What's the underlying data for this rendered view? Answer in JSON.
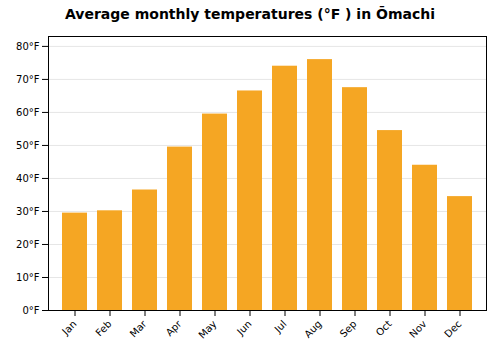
{
  "chart_data": {
    "type": "bar",
    "title": "Average monthly temperatures (°F ) in Ōmachi",
    "categories": [
      "Jan",
      "Feb",
      "Mar",
      "Apr",
      "May",
      "Jun",
      "Jul",
      "Aug",
      "Sep",
      "Oct",
      "Nov",
      "Dec"
    ],
    "values": [
      29.5,
      30.2,
      36.5,
      49.5,
      59.5,
      66.5,
      74.0,
      76.0,
      67.5,
      54.5,
      44.0,
      34.5
    ],
    "color": "#F5A623",
    "ylim": [
      0,
      83
    ],
    "yticks": [
      {
        "value": 0,
        "label": "0°F"
      },
      {
        "value": 10,
        "label": "10°F"
      },
      {
        "value": 20,
        "label": "20°F"
      },
      {
        "value": 30,
        "label": "30°F"
      },
      {
        "value": 40,
        "label": "40°F"
      },
      {
        "value": 50,
        "label": "50°F"
      },
      {
        "value": 60,
        "label": "60°F"
      },
      {
        "value": 70,
        "label": "70°F"
      },
      {
        "value": 80,
        "label": "80°F"
      }
    ],
    "grid": true
  }
}
